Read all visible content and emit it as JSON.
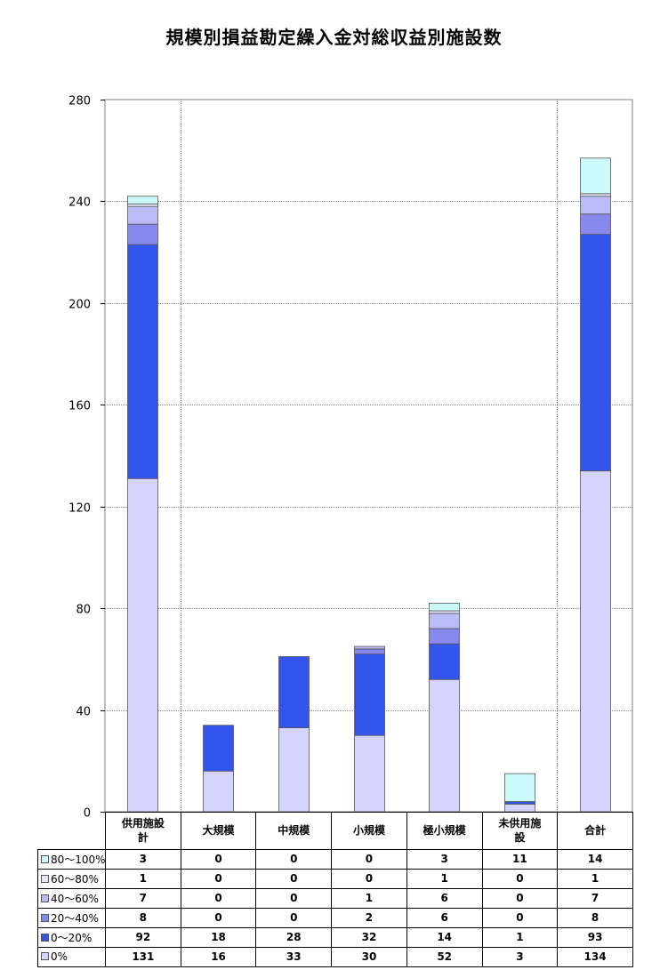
{
  "chart_data": {
    "type": "bar",
    "stacked": true,
    "title": "規模別損益勘定繰入金対総収益別施設数",
    "categories": [
      "供用施設計",
      "大規模",
      "中規模",
      "小規模",
      "極小規模",
      "未供用施設",
      "合計"
    ],
    "category_lines": [
      [
        "供用施設",
        "計"
      ],
      [
        "大規模"
      ],
      [
        "中規模"
      ],
      [
        "小規模"
      ],
      [
        "極小規模"
      ],
      [
        "未供用施",
        "設"
      ],
      [
        "合計"
      ]
    ],
    "ylim": [
      0,
      280
    ],
    "yticks": [
      "0",
      "40",
      "80",
      "120",
      "160",
      "200",
      "240",
      "280"
    ],
    "grid": true,
    "legend_placement": "table-left",
    "series": [
      {
        "name": "0%",
        "color": "#d4d4ff",
        "values": [
          131,
          16,
          33,
          30,
          52,
          3,
          134
        ]
      },
      {
        "name": "0〜20%",
        "color": "#3355ee",
        "values": [
          92,
          18,
          28,
          32,
          14,
          1,
          93
        ]
      },
      {
        "name": "20〜40%",
        "color": "#8888ee",
        "values": [
          8,
          0,
          0,
          2,
          6,
          0,
          8
        ]
      },
      {
        "name": "40〜60%",
        "color": "#bbbbf5",
        "values": [
          7,
          0,
          0,
          1,
          6,
          0,
          7
        ]
      },
      {
        "name": "60〜80%",
        "color": "#e6e6ff",
        "values": [
          1,
          0,
          0,
          0,
          1,
          0,
          1
        ]
      },
      {
        "name": "80〜100%",
        "color": "#ccfafa",
        "values": [
          3,
          0,
          0,
          0,
          3,
          11,
          14
        ]
      }
    ]
  }
}
